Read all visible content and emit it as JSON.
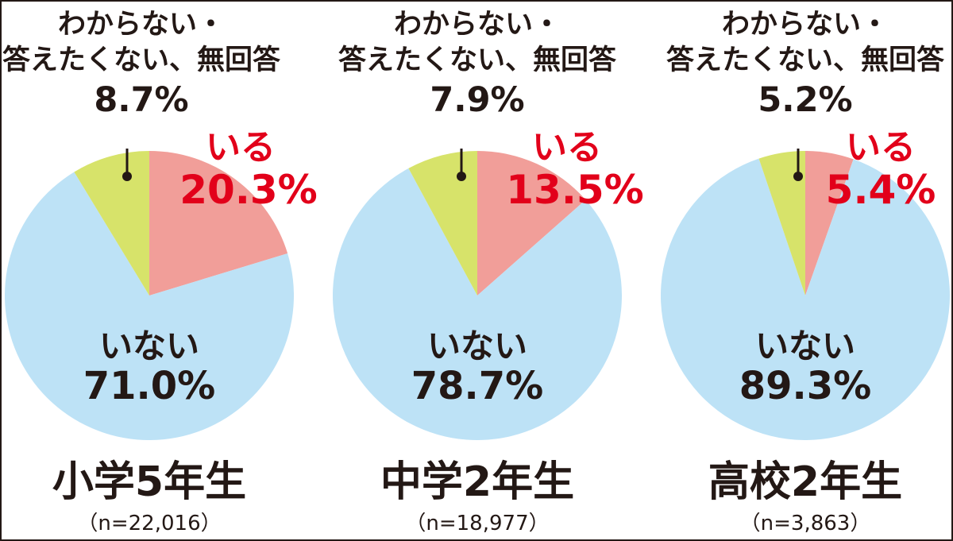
{
  "colors": {
    "iru": "#f19e99",
    "inai": "#bde2f6",
    "unknown": "#d7e36a",
    "iru_text": "#e2001a",
    "text": "#231815"
  },
  "chart_data": [
    {
      "type": "pie",
      "title": "小学5年生",
      "n_label": "（n=22,016）",
      "slices": [
        {
          "label": "いる",
          "value": 20.3,
          "display": "20.3%"
        },
        {
          "label": "いない",
          "value": 71.0,
          "display": "71.0%"
        },
        {
          "label_line1": "わからない・",
          "label_line2": "答えたくない、無回答",
          "value": 8.7,
          "display": "8.7%"
        }
      ]
    },
    {
      "type": "pie",
      "title": "中学2年生",
      "n_label": "（n=18,977）",
      "slices": [
        {
          "label": "いる",
          "value": 13.5,
          "display": "13.5%"
        },
        {
          "label": "いない",
          "value": 78.7,
          "display": "78.7%"
        },
        {
          "label_line1": "わからない・",
          "label_line2": "答えたくない、無回答",
          "value": 7.9,
          "display": "7.9%"
        }
      ]
    },
    {
      "type": "pie",
      "title": "高校2年生",
      "n_label": "（n=3,863）",
      "slices": [
        {
          "label": "いる",
          "value": 5.4,
          "display": "5.4%"
        },
        {
          "label": "いない",
          "value": 89.3,
          "display": "89.3%"
        },
        {
          "label_line1": "わからない・",
          "label_line2": "答えたくない、無回答",
          "value": 5.2,
          "display": "5.2%"
        }
      ]
    }
  ]
}
